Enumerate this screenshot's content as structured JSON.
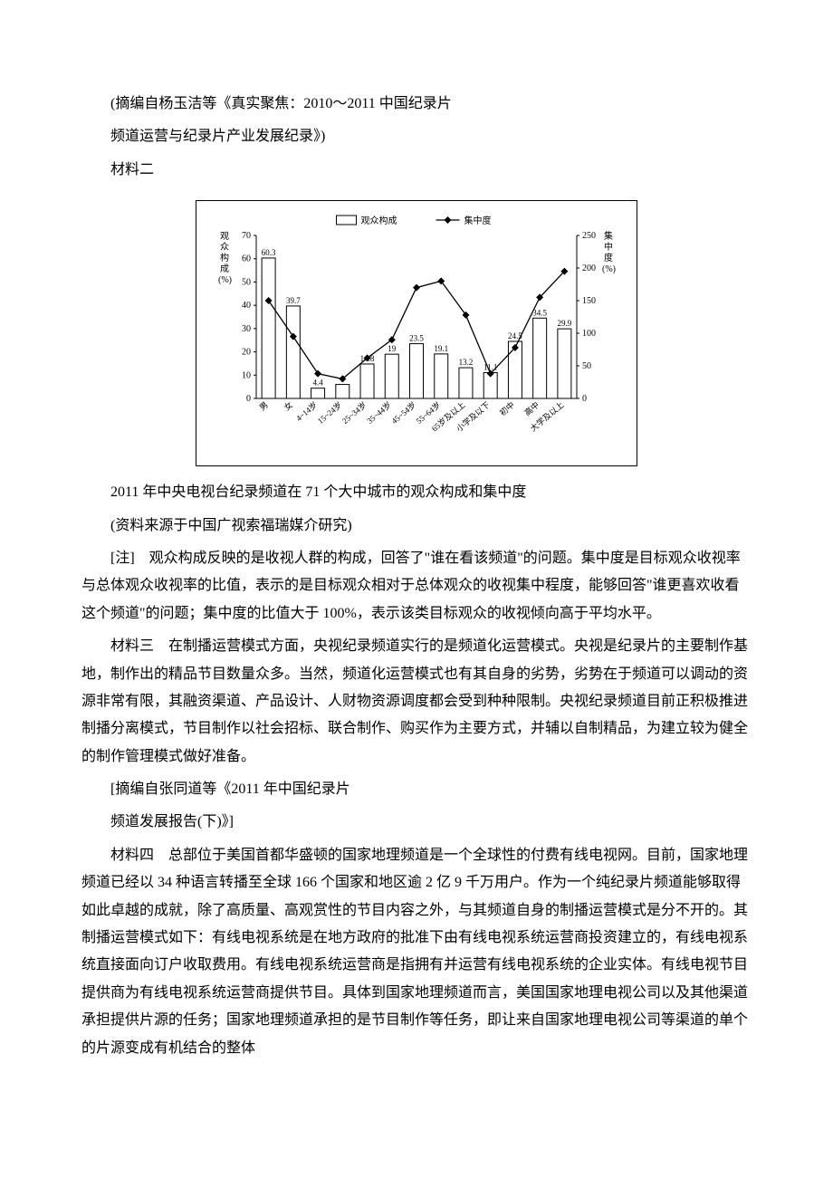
{
  "p1": "(摘编自杨玉洁等《真实聚焦：2010～2011 中国纪录片",
  "p2": "频道运营与纪录片产业发展纪录》)",
  "p3": "材料二",
  "chart": {
    "type": "bar-line-combo",
    "legend": {
      "bar": "观众构成",
      "line": "集中度"
    },
    "left_axis": {
      "label": "观众构成(%)",
      "min": 0,
      "max": 70,
      "step": 10,
      "label_fontsize": 10
    },
    "right_axis": {
      "label": "集中度(%)",
      "min": 0,
      "max": 250,
      "step": 50,
      "label_fontsize": 10
    },
    "categories": [
      "男",
      "女",
      "4~14岁",
      "15~24岁",
      "25~34岁",
      "35~44岁",
      "45~54岁",
      "55~64岁",
      "65岁及以上",
      "小学及以下",
      "初中",
      "高中",
      "大学及以上"
    ],
    "bar_values": [
      60.3,
      39.7,
      4.4,
      6.0,
      14.8,
      19.0,
      23.5,
      19.1,
      13.2,
      11.1,
      24.5,
      34.5,
      29.9
    ],
    "line_values": [
      150,
      95,
      38,
      30,
      62,
      90,
      170,
      180,
      128,
      38,
      78,
      155,
      195
    ],
    "bar_fill": "#ffffff",
    "bar_stroke": "#000000",
    "line_color": "#000000",
    "marker": "diamond",
    "background": "#ffffff",
    "axis_color": "#000000",
    "tick_fontsize": 10,
    "label_rotate": -40
  },
  "caption": "2011 年中央电视台纪录频道在 71 个大中城市的观众构成和集中度",
  "source": "(资料来源于中国广视索福瑞媒介研究)",
  "note": "[注]　观众构成反映的是收视人群的构成，回答了\"谁在看该频道\"的问题。集中度是目标观众收视率与总体观众收视率的比值，表示的是目标观众相对于总体观众的收视集中程度，能够回答\"谁更喜欢收看这个频道\"的问题；集中度的比值大于 100%，表示该类目标观众的收视倾向高于平均水平。",
  "m3": "材料三　在制播运营模式方面，央视纪录频道实行的是频道化运营模式。央视是纪录片的主要制作基地，制作出的精品节目数量众多。当然，频道化运营模式也有其自身的劣势，劣势在于频道可以调动的资源非常有限，其融资渠道、产品设计、人财物资源调度都会受到种种限制。央视纪录频道目前正积极推进制播分离模式，节目制作以社会招标、联合制作、购买作为主要方式，并辅以自制精品，为建立较为健全的制作管理模式做好准备。",
  "m3_cite1": "[摘编自张同道等《2011 年中国纪录片",
  "m3_cite2": "频道发展报告(下)》]",
  "m4": "材料四　总部位于美国首都华盛顿的国家地理频道是一个全球性的付费有线电视网。目前，国家地理频道已经以 34 种语言转播至全球 166 个国家和地区逾 2 亿 9 千万用户。作为一个纯纪录片频道能够取得如此卓越的成就，除了高质量、高观赏性的节目内容之外，与其频道自身的制播运营模式是分不开的。其制播运营模式如下：有线电视系统是在地方政府的批准下由有线电视系统运营商投资建立的，有线电视系统直接面向订户收取费用。有线电视系统运营商是指拥有并运营有线电视系统的企业实体。有线电视节目提供商为有线电视系统运营商提供节目。具体到国家地理频道而言，美国国家地理电视公司以及其他渠道承担提供片源的任务；国家地理频道承担的是节目制作等任务，即让来自国家地理电视公司等渠道的单个的片源变成有机结合的整体"
}
